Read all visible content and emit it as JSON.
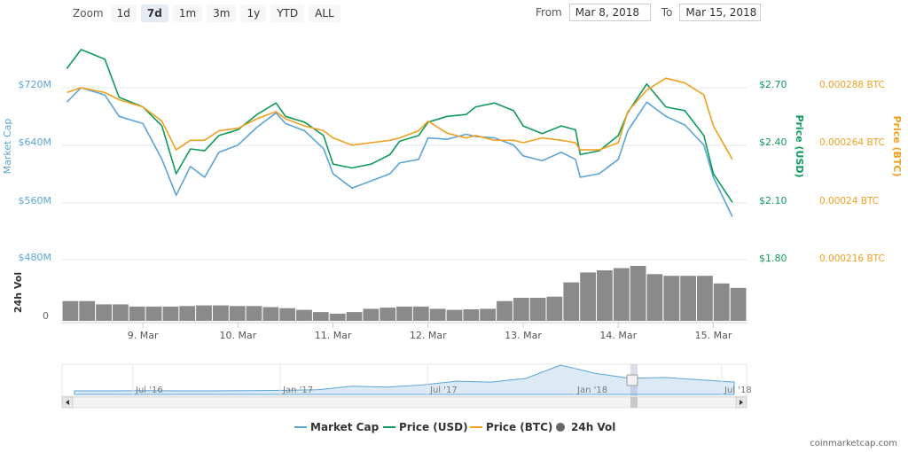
{
  "toolbar": {
    "zoom_label": "Zoom",
    "zoom_buttons": [
      "1d",
      "7d",
      "1m",
      "3m",
      "1y",
      "YTD",
      "ALL"
    ],
    "active_zoom": "7d",
    "from_label": "From",
    "from_value": "Mar 8, 2018",
    "to_label": "To",
    "to_value": "Mar 15, 2018"
  },
  "colors": {
    "market_cap": "#5ba4d6",
    "price_usd": "#0f9a5b",
    "price_btc": "#f0a020",
    "volume": "#8a8a8a",
    "grid": "#e6e6e6"
  },
  "chart_data": {
    "type": "line",
    "x_tick_labels": [
      "9. Mar",
      "10. Mar",
      "11. Mar",
      "12. Mar",
      "13. Mar",
      "14. Mar",
      "15. Mar"
    ],
    "axes": {
      "market_cap": {
        "label": "Market Cap",
        "ticks": [
          "$480M",
          "$560M",
          "$640M",
          "$720M"
        ],
        "range": [
          480,
          720
        ]
      },
      "price_usd": {
        "label": "Price (USD)",
        "ticks": [
          "$1.80",
          "$2.10",
          "$2.40",
          "$2.70"
        ],
        "range": [
          1.8,
          2.7
        ]
      },
      "price_btc": {
        "label": "Price (BTC)",
        "ticks": [
          "0.000216 BTC",
          "0.00024 BTC",
          "0.000264 BTC",
          "0.000288 BTC"
        ],
        "range": [
          0.000216,
          0.000288
        ]
      },
      "volume": {
        "label": "24h Vol",
        "ticks": [
          "0"
        ]
      }
    },
    "x_days": [
      8.2,
      8.35,
      8.6,
      8.75,
      9.0,
      9.2,
      9.35,
      9.5,
      9.65,
      9.8,
      10.0,
      10.2,
      10.4,
      10.5,
      10.7,
      10.9,
      11.0,
      11.2,
      11.4,
      11.6,
      11.7,
      11.9,
      12.0,
      12.2,
      12.4,
      12.5,
      12.7,
      12.9,
      13.0,
      13.2,
      13.4,
      13.55,
      13.6,
      13.8,
      14.0,
      14.1,
      14.3,
      14.5,
      14.7,
      14.9,
      15.0,
      15.2
    ],
    "series": [
      {
        "name": "Market Cap",
        "axis": "market_cap",
        "values": [
          700,
          720,
          710,
          680,
          670,
          620,
          570,
          610,
          595,
          630,
          640,
          665,
          685,
          670,
          660,
          635,
          600,
          580,
          590,
          600,
          615,
          620,
          650,
          648,
          655,
          652,
          650,
          640,
          625,
          618,
          630,
          620,
          595,
          600,
          620,
          660,
          700,
          680,
          668,
          640,
          595,
          540
        ]
      },
      {
        "name": "Price (USD)",
        "axis": "price_usd",
        "values": [
          2.8,
          2.9,
          2.85,
          2.65,
          2.6,
          2.5,
          2.25,
          2.38,
          2.37,
          2.45,
          2.48,
          2.56,
          2.62,
          2.55,
          2.52,
          2.45,
          2.3,
          2.28,
          2.3,
          2.35,
          2.42,
          2.45,
          2.52,
          2.55,
          2.56,
          2.6,
          2.62,
          2.58,
          2.5,
          2.46,
          2.5,
          2.48,
          2.35,
          2.37,
          2.45,
          2.57,
          2.72,
          2.6,
          2.58,
          2.45,
          2.25,
          2.1
        ]
      },
      {
        "name": "Price (BTC)",
        "axis": "price_btc",
        "values": [
          0.000286,
          0.000288,
          0.000286,
          0.000283,
          0.00028,
          0.000274,
          0.000262,
          0.000266,
          0.000266,
          0.00027,
          0.000271,
          0.000275,
          0.000278,
          0.000275,
          0.000272,
          0.00027,
          0.000267,
          0.000264,
          0.000265,
          0.000266,
          0.000267,
          0.00027,
          0.000274,
          0.000269,
          0.000267,
          0.000268,
          0.000266,
          0.000266,
          0.000265,
          0.000267,
          0.000266,
          0.000265,
          0.000262,
          0.000262,
          0.000265,
          0.000278,
          0.000287,
          0.000292,
          0.00029,
          0.000285,
          0.000272,
          0.000258
        ]
      }
    ],
    "volume_levels": [
      0.36,
      0.36,
      0.3,
      0.3,
      0.26,
      0.26,
      0.26,
      0.27,
      0.28,
      0.28,
      0.27,
      0.27,
      0.25,
      0.23,
      0.2,
      0.16,
      0.13,
      0.16,
      0.22,
      0.24,
      0.26,
      0.26,
      0.22,
      0.2,
      0.21,
      0.22,
      0.36,
      0.42,
      0.42,
      0.44,
      0.7,
      0.88,
      0.92,
      0.96,
      1.0,
      0.85,
      0.82,
      0.82,
      0.82,
      0.68,
      0.6
    ],
    "legend": [
      "Market Cap",
      "Price (USD)",
      "Price (BTC)",
      "24h Vol"
    ],
    "legend_position": "bottom",
    "navigator": {
      "tick_labels": [
        "Jul '16",
        "Jan '17",
        "Jul '17",
        "Jan '18",
        "Jul '18"
      ]
    },
    "grid": true
  },
  "watermark": "coinmarketcap.com"
}
